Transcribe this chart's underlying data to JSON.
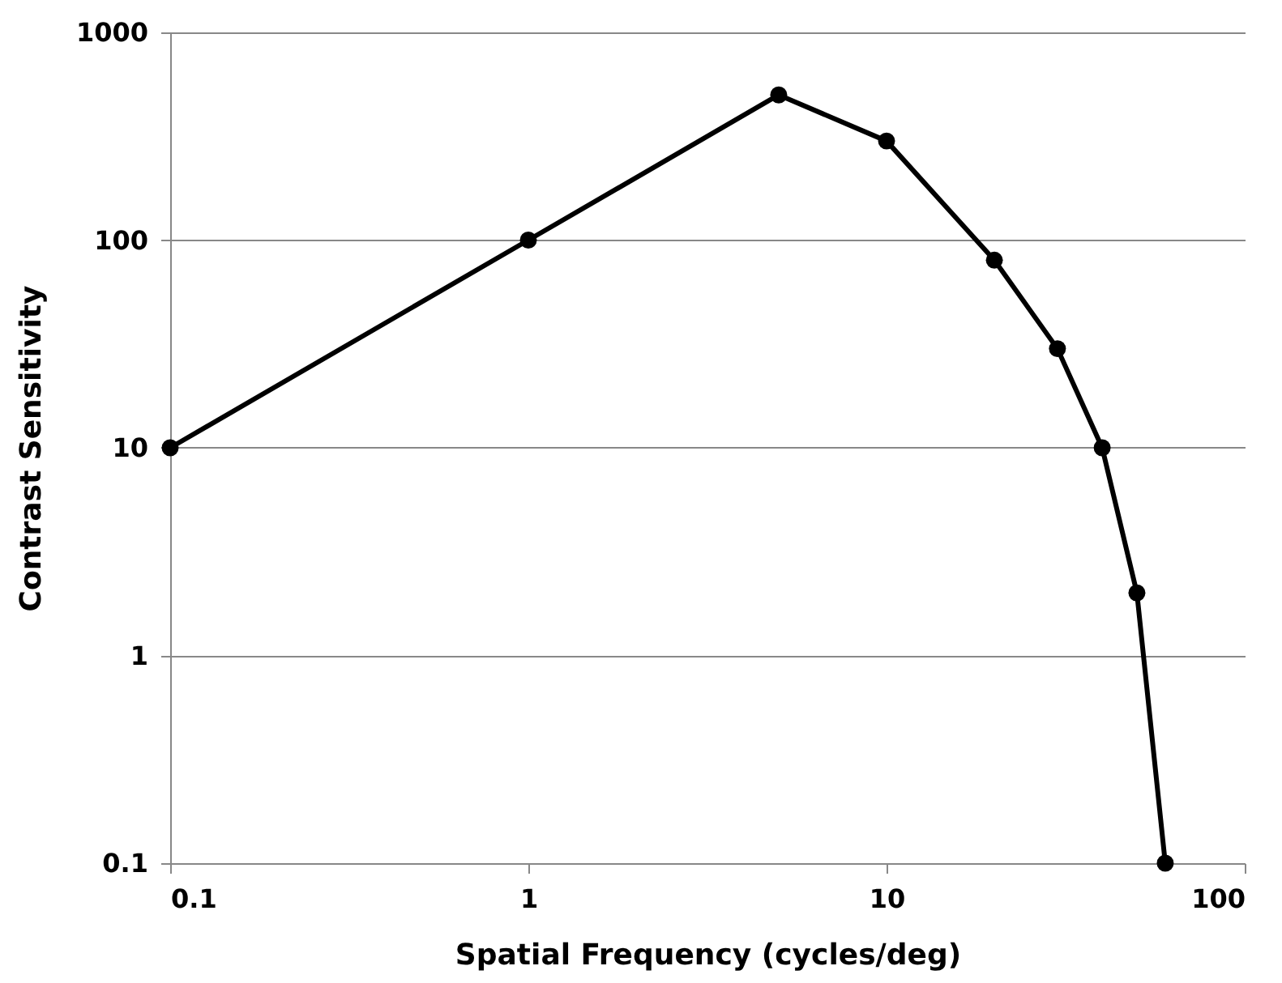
{
  "chart_data": {
    "type": "line",
    "xlabel": "Spatial Frequency (cycles/deg)",
    "ylabel": "Contrast Sensitivity",
    "x": [
      0.1,
      1,
      5,
      10,
      20,
      30,
      40,
      50,
      60
    ],
    "series": [
      {
        "color": "#000000",
        "values": [
          10,
          100,
          500,
          300,
          80,
          30,
          10,
          2,
          0.1
        ]
      }
    ],
    "xlim": [
      0.1,
      100
    ],
    "ylim": [
      0.1,
      1000
    ],
    "xticks": [
      0.1,
      1,
      10,
      100
    ],
    "yticks": [
      0.1,
      1,
      10,
      100,
      1000
    ],
    "log": "xy",
    "grid": "y",
    "marker": "circle",
    "line_style": "solid"
  }
}
